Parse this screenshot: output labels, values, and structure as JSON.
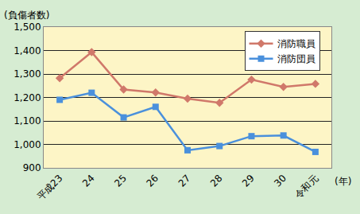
{
  "chart_data": {
    "type": "line",
    "y_label": "(負傷者数)",
    "x_label": "(年)",
    "categories": [
      "平成23",
      "24",
      "25",
      "26",
      "27",
      "28",
      "29",
      "30",
      "令和元"
    ],
    "series": [
      {
        "name": "消防職員",
        "color": "#d0786a",
        "marker": "diamond",
        "values": [
          1282,
          1393,
          1234,
          1221,
          1195,
          1177,
          1276,
          1245,
          1258
        ]
      },
      {
        "name": "消防団員",
        "color": "#4a90dc",
        "marker": "square",
        "values": [
          1190,
          1220,
          1115,
          1160,
          975,
          993,
          1035,
          1038,
          968
        ]
      }
    ],
    "ylim": [
      900,
      1500
    ],
    "yticks": [
      900,
      {
        "value": 1000,
        "label": "1,000"
      },
      {
        "value": 1100,
        "label": "1,100"
      },
      {
        "value": 1200,
        "label": "1,200"
      },
      {
        "value": 1300,
        "label": "1,300"
      },
      {
        "value": 1400,
        "label": "1,400"
      },
      {
        "value": 1500,
        "label": "1,500"
      }
    ],
    "grid": true,
    "legend": "top-right"
  }
}
